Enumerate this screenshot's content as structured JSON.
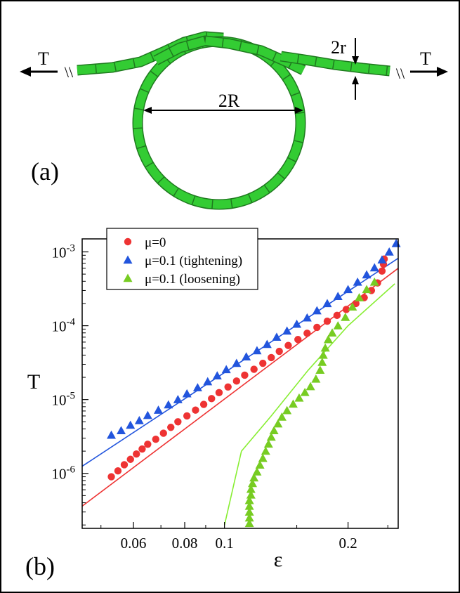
{
  "panel_a": {
    "label": "(a)",
    "tension_left": "T",
    "tension_right": "T",
    "diameter_label": "2R",
    "thickness_label": "2r",
    "break_mark_left": "\\\\",
    "break_mark_right": "\\\\",
    "rope_color": "#33cc33",
    "rope_edge_color": "#1f7a1f"
  },
  "panel_b": {
    "label": "(b)"
  },
  "chart_data": {
    "type": "scatter",
    "xlabel": "ε",
    "ylabel": "T",
    "x_scale": "log",
    "y_scale": "log",
    "xlim": [
      0.045,
      0.265
    ],
    "ylim": [
      1.8e-07,
      0.0015
    ],
    "x_ticks": [
      {
        "value": 0.06,
        "label": "0.06"
      },
      {
        "value": 0.08,
        "label": "0.08"
      },
      {
        "value": 0.1,
        "label": "0.1"
      },
      {
        "value": 0.2,
        "label": "0.2"
      }
    ],
    "y_ticks": [
      {
        "value": 1e-06,
        "base": "10",
        "exp": "-6"
      },
      {
        "value": 1e-05,
        "base": "10",
        "exp": "-5"
      },
      {
        "value": 0.0001,
        "base": "10",
        "exp": "-4"
      },
      {
        "value": 0.001,
        "base": "10",
        "exp": "-3"
      }
    ],
    "legend_position": "top-left",
    "series": [
      {
        "name": "μ=0",
        "marker": "circle",
        "color": "#ee3333",
        "points": [
          [
            0.053,
            9e-07
          ],
          [
            0.055,
            1.08e-06
          ],
          [
            0.057,
            1.31e-06
          ],
          [
            0.059,
            1.55e-06
          ],
          [
            0.061,
            1.83e-06
          ],
          [
            0.063,
            2.14e-06
          ],
          [
            0.065,
            2.48e-06
          ],
          [
            0.068,
            2.9e-06
          ],
          [
            0.071,
            3.5e-06
          ],
          [
            0.074,
            4.2e-06
          ],
          [
            0.077,
            5e-06
          ],
          [
            0.081,
            6e-06
          ],
          [
            0.085,
            7.2e-06
          ],
          [
            0.089,
            8.6e-06
          ],
          [
            0.093,
            1.03e-05
          ],
          [
            0.097,
            1.24e-05
          ],
          [
            0.102,
            1.48e-05
          ],
          [
            0.107,
            1.78e-05
          ],
          [
            0.112,
            2.14e-05
          ],
          [
            0.118,
            2.57e-05
          ],
          [
            0.124,
            3.1e-05
          ],
          [
            0.13,
            3.7e-05
          ],
          [
            0.136,
            4.5e-05
          ],
          [
            0.143,
            5.4e-05
          ],
          [
            0.151,
            6.5e-05
          ],
          [
            0.159,
            7.9e-05
          ],
          [
            0.168,
            9.5e-05
          ],
          [
            0.178,
            0.000115
          ],
          [
            0.188,
            0.000138
          ],
          [
            0.198,
            0.000166
          ],
          [
            0.209,
            0.0002
          ],
          [
            0.219,
            0.00024
          ],
          [
            0.228,
            0.0003
          ],
          [
            0.236,
            0.00038
          ],
          [
            0.242,
            0.00055
          ],
          [
            0.244,
            0.00068
          ],
          [
            0.245,
            0.0008
          ]
        ]
      },
      {
        "name": "μ=0.1 (tightening)",
        "marker": "triangle",
        "color": "#2255dd",
        "points": [
          [
            0.053,
            3.3e-06
          ],
          [
            0.056,
            3.8e-06
          ],
          [
            0.059,
            4.5e-06
          ],
          [
            0.062,
            5.2e-06
          ],
          [
            0.065,
            6.1e-06
          ],
          [
            0.069,
            7.2e-06
          ],
          [
            0.073,
            8.5e-06
          ],
          [
            0.077,
            1e-05
          ],
          [
            0.081,
            1.2e-05
          ],
          [
            0.086,
            1.45e-05
          ],
          [
            0.091,
            1.75e-05
          ],
          [
            0.096,
            2.1e-05
          ],
          [
            0.101,
            2.55e-05
          ],
          [
            0.107,
            3.1e-05
          ],
          [
            0.113,
            3.8e-05
          ],
          [
            0.12,
            4.6e-05
          ],
          [
            0.127,
            5.6e-05
          ],
          [
            0.134,
            7e-05
          ],
          [
            0.142,
            8.5e-05
          ],
          [
            0.15,
            0.000105
          ],
          [
            0.159,
            0.000128
          ],
          [
            0.168,
            0.00016
          ],
          [
            0.178,
            0.0002
          ],
          [
            0.189,
            0.00025
          ],
          [
            0.2,
            0.00031
          ],
          [
            0.211,
            0.00039
          ],
          [
            0.222,
            0.00049
          ],
          [
            0.232,
            0.00061
          ],
          [
            0.242,
            0.00078
          ],
          [
            0.252,
            0.001
          ],
          [
            0.262,
            0.0013
          ]
        ]
      },
      {
        "name": "μ=0.1 (loosening)",
        "marker": "triangle",
        "color": "#77cc22",
        "points": [
          [
            0.115,
            2.1e-07
          ],
          [
            0.115,
            2.5e-07
          ],
          [
            0.115,
            3e-07
          ],
          [
            0.115,
            3.6e-07
          ],
          [
            0.115,
            4.3e-07
          ],
          [
            0.116,
            5.1e-07
          ],
          [
            0.116,
            6.1e-07
          ],
          [
            0.117,
            7.3e-07
          ],
          [
            0.118,
            8.7e-07
          ],
          [
            0.12,
            1.05e-06
          ],
          [
            0.122,
            1.3e-06
          ],
          [
            0.124,
            1.6e-06
          ],
          [
            0.126,
            2e-06
          ],
          [
            0.128,
            2.5e-06
          ],
          [
            0.13,
            3.1e-06
          ],
          [
            0.132,
            3.8e-06
          ],
          [
            0.135,
            4.7e-06
          ],
          [
            0.138,
            5.8e-06
          ],
          [
            0.142,
            7.1e-06
          ],
          [
            0.147,
            8.7e-06
          ],
          [
            0.152,
            1.05e-05
          ],
          [
            0.157,
            1.25e-05
          ],
          [
            0.162,
            1.5e-05
          ],
          [
            0.167,
            1.9e-05
          ],
          [
            0.171,
            2.5e-05
          ],
          [
            0.173,
            3.2e-05
          ],
          [
            0.174,
            4e-05
          ],
          [
            0.176,
            5e-05
          ],
          [
            0.179,
            6.5e-05
          ],
          [
            0.183,
            8e-05
          ],
          [
            0.189,
            0.0001
          ],
          [
            0.197,
            0.00013
          ],
          [
            0.205,
            0.00018
          ],
          [
            0.213,
            0.00024
          ],
          [
            0.222,
            0.00031
          ],
          [
            0.232,
            0.00039
          ]
        ]
      }
    ],
    "fit_lines": [
      {
        "color": "#2255dd",
        "points": [
          [
            0.045,
            1.25e-06
          ],
          [
            0.265,
            0.00082
          ]
        ]
      },
      {
        "color": "#ee3333",
        "points": [
          [
            0.045,
            3.6e-07
          ],
          [
            0.265,
            0.0006
          ]
        ]
      },
      {
        "color": "#88ee33",
        "points": [
          [
            0.1,
            2e-07
          ],
          [
            0.11,
            2e-06
          ],
          [
            0.13,
            6e-06
          ],
          [
            0.16,
            2.5e-05
          ],
          [
            0.2,
            0.0001
          ],
          [
            0.26,
            0.00037
          ]
        ]
      }
    ]
  }
}
